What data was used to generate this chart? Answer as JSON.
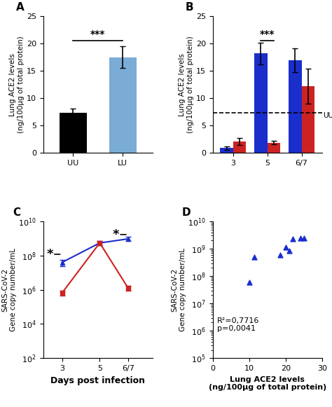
{
  "panel_A": {
    "categories": [
      "UU",
      "LU"
    ],
    "values": [
      7.3,
      17.5
    ],
    "errors": [
      0.8,
      2.0
    ],
    "colors": [
      "#000000",
      "#7aacd6"
    ],
    "ylabel": "Lung ACE2 levels\n(ng/100μg of total protein)",
    "ylim": [
      0,
      25
    ],
    "yticks": [
      0,
      5,
      10,
      15,
      20,
      25
    ],
    "sig_text": "***",
    "sig_y": 20.5,
    "sig_x1": 0,
    "sig_x2": 1
  },
  "panel_B": {
    "groups": [
      "3",
      "5",
      "6/7"
    ],
    "blue_values": [
      0.9,
      18.2,
      17.0
    ],
    "blue_errors": [
      0.3,
      2.0,
      2.2
    ],
    "red_values": [
      2.1,
      1.9,
      12.2
    ],
    "red_errors": [
      0.6,
      0.3,
      3.2
    ],
    "blue_color": "#1a2ecc",
    "red_color": "#cc2222",
    "ylabel": "Lung ACE2 levels\n(ng/100μg of total protein)",
    "ylim": [
      0,
      25
    ],
    "yticks": [
      0,
      5,
      10,
      15,
      20,
      25
    ],
    "dashed_y": 7.3,
    "dashed_label": "UU",
    "sig_text": "***",
    "sig_group_idx": 1
  },
  "panel_C": {
    "days": [
      3,
      5,
      6.5
    ],
    "blue_values": [
      40000000.0,
      550000000.0,
      950000000.0
    ],
    "blue_errors_lo": [
      15000000.0,
      150000000.0,
      200000000.0
    ],
    "blue_errors_hi": [
      15000000.0,
      150000000.0,
      300000000.0
    ],
    "red_values": [
      650000.0,
      550000000.0,
      1300000.0
    ],
    "red_errors_lo": [
      200000.0,
      150000000.0,
      400000.0
    ],
    "red_errors_hi": [
      200000.0,
      200000000.0,
      400000.0
    ],
    "blue_color": "#1a2ecc",
    "red_color": "#cc2222",
    "xlabel": "Days post infection",
    "ylabel": "SARS-CoV-2\nGene copy number/mL",
    "ylim_log": [
      100.0,
      10000000000.0
    ],
    "xticks": [
      3,
      5,
      6.5
    ],
    "xticklabels": [
      "3",
      "5",
      "6/7"
    ]
  },
  "panel_D": {
    "scatter_x": [
      10.0,
      11.5,
      18.5,
      20.0,
      21.0,
      22.0,
      24.0,
      25.0
    ],
    "scatter_y": [
      60000000.0,
      500000000.0,
      600000000.0,
      1100000000.0,
      850000000.0,
      2300000000.0,
      2500000000.0,
      2400000000.0
    ],
    "blue_color": "#1a2ecc",
    "xlabel": "Lung ACE2 levels\n(ng/100μg of total protein)",
    "ylabel": "SARS-CoV-2\nGene copy number/mL",
    "r2_text": "R²=0,7716\np=0,0041",
    "ylim_log": [
      100000.0,
      10000000000.0
    ],
    "xlim": [
      0,
      30
    ],
    "xticks": [
      0,
      10,
      20,
      30
    ]
  }
}
